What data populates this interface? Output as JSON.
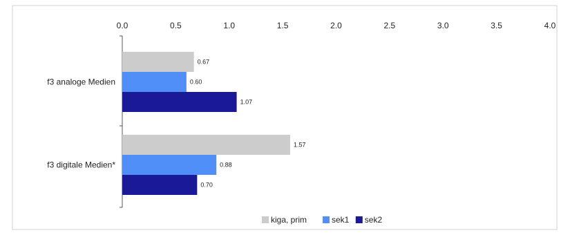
{
  "chart_data": {
    "type": "bar",
    "orientation": "horizontal",
    "x_axis_position": "top",
    "xlim": [
      0,
      4.0
    ],
    "x_ticks": [
      "0.0",
      "0.5",
      "1.0",
      "1.5",
      "2.0",
      "2.5",
      "3.0",
      "3.5",
      "4.0"
    ],
    "categories": [
      "f3 analoge Medien",
      "f3 digitale Medien*"
    ],
    "series": [
      {
        "name": "kiga, prim",
        "color": "#cccccc",
        "values": [
          0.67,
          1.57
        ],
        "labels": [
          "0.67",
          "1.57"
        ]
      },
      {
        "name": "sek1",
        "color": "#4f8ff7",
        "values": [
          0.6,
          0.88
        ],
        "labels": [
          "0.60",
          "0.88"
        ]
      },
      {
        "name": "sek2",
        "color": "#1a1a99",
        "values": [
          1.07,
          0.7
        ],
        "labels": [
          "1.07",
          "0.70"
        ]
      }
    ],
    "legend_position": "bottom-center",
    "grid": false
  }
}
